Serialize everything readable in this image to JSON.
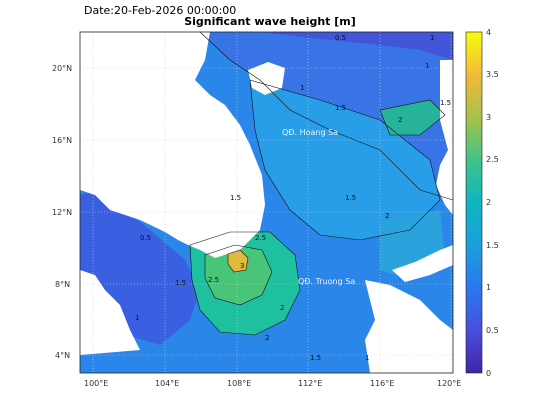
{
  "header": {
    "date": "Date:20-Feb-2026 00:00:00",
    "title": "Significant wave height [m]"
  },
  "axes": {
    "lon_ticks": [
      "100°E",
      "104°E",
      "108°E",
      "112°E",
      "116°E",
      "120°E"
    ],
    "lat_ticks": [
      "20°N",
      "16°N",
      "12°N",
      "8°N",
      "4°N"
    ]
  },
  "places": {
    "paracel": "QĐ. Hoang Sa",
    "spratly": "QĐ. Truong Sa"
  },
  "contour_labels": [
    "0.5",
    "1",
    "1",
    "1.5",
    "1.5",
    "1.5",
    "2",
    "2",
    "2",
    "2.5",
    "2.5",
    "3",
    "2",
    "1.5",
    "1",
    "1.5",
    "0.5",
    "1",
    "1.5",
    "1"
  ],
  "colorbar": {
    "ticks": [
      "4",
      "3.5",
      "3",
      "2.5",
      "2",
      "1.5",
      "1",
      "0.5",
      "0"
    ],
    "colors": [
      "#f9fb0e",
      "#fbbc3c",
      "#d4bb21",
      "#5ec962",
      "#21b08c",
      "#2d9fdd",
      "#1a72ea",
      "#4a4ddb",
      "#3e26a8"
    ]
  },
  "chart_data": {
    "type": "heatmap",
    "title": "Significant wave height [m]",
    "subtitle": "Date:20-Feb-2026 00:00:00",
    "xlim": [
      99,
      121
    ],
    "ylim": [
      3,
      22
    ],
    "colorbar_range": [
      0,
      4
    ],
    "colormap": "parula"
  }
}
